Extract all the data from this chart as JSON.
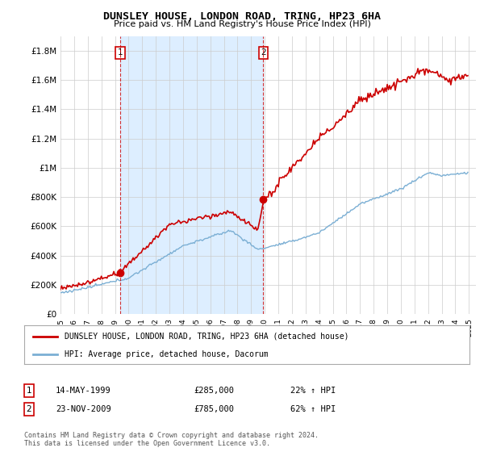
{
  "title": "DUNSLEY HOUSE, LONDON ROAD, TRING, HP23 6HA",
  "subtitle": "Price paid vs. HM Land Registry's House Price Index (HPI)",
  "ylim": [
    0,
    1900000
  ],
  "yticks": [
    0,
    200000,
    400000,
    600000,
    800000,
    1000000,
    1200000,
    1400000,
    1600000,
    1800000
  ],
  "ytick_labels": [
    "£0",
    "£200K",
    "£400K",
    "£600K",
    "£800K",
    "£1M",
    "£1.2M",
    "£1.4M",
    "£1.6M",
    "£1.8M"
  ],
  "sale1_year": 1999.37,
  "sale1_price": 285000,
  "sale2_year": 2009.9,
  "sale2_price": 785000,
  "hpi_color": "#7bafd4",
  "price_color": "#cc0000",
  "shade_color": "#ddeeff",
  "legend_house": "DUNSLEY HOUSE, LONDON ROAD, TRING, HP23 6HA (detached house)",
  "legend_hpi": "HPI: Average price, detached house, Dacorum",
  "sale1_info": "14-MAY-1999",
  "sale1_amount": "£285,000",
  "sale1_hpi": "22% ↑ HPI",
  "sale2_info": "23-NOV-2009",
  "sale2_amount": "£785,000",
  "sale2_hpi": "62% ↑ HPI",
  "footnote": "Contains HM Land Registry data © Crown copyright and database right 2024.\nThis data is licensed under the Open Government Licence v3.0.",
  "background_color": "#ffffff",
  "grid_color": "#cccccc"
}
